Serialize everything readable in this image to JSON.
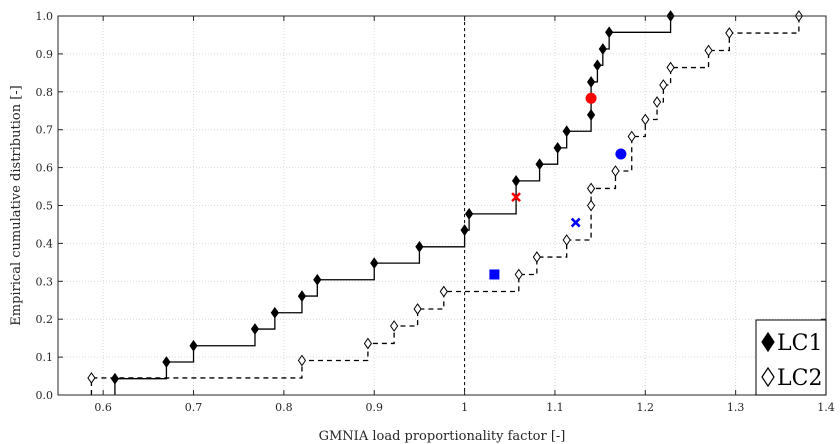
{
  "chart_data": {
    "type": "line",
    "xlabel": "GMNIA load proportionality factor [-]",
    "ylabel": "Empirical cumulative distribution [-]",
    "xlim": [
      0.55,
      1.4
    ],
    "ylim": [
      0.0,
      1.0
    ],
    "xticks": [
      0.6,
      0.7,
      0.8,
      0.9,
      1.0,
      1.1,
      1.2,
      1.3,
      1.4
    ],
    "yticks": [
      0.0,
      0.1,
      0.2,
      0.3,
      0.4,
      0.5,
      0.6,
      0.7,
      0.8,
      0.9,
      1.0
    ],
    "xtick_labels": [
      "0.6",
      "0.7",
      "0.8",
      "0.9",
      "1",
      "1.1",
      "1.2",
      "1.3",
      "1.4"
    ],
    "ytick_labels": [
      "0.0",
      "0.1",
      "0.2",
      "0.3",
      "0.4",
      "0.5",
      "0.6",
      "0.7",
      "0.8",
      "0.9",
      "1.0"
    ],
    "grid": true,
    "legend_position": "bottom-right",
    "reference_line": {
      "x": 1.0,
      "style": "dashed"
    },
    "series": [
      {
        "name": "LC1",
        "line_style": "solid",
        "marker": "filled-diamond",
        "color": "#000000",
        "points": [
          [
            0.613,
            0.043
          ],
          [
            0.67,
            0.087
          ],
          [
            0.7,
            0.13
          ],
          [
            0.768,
            0.174
          ],
          [
            0.79,
            0.217
          ],
          [
            0.82,
            0.261
          ],
          [
            0.837,
            0.304
          ],
          [
            0.9,
            0.348
          ],
          [
            0.95,
            0.391
          ],
          [
            1.0,
            0.435
          ],
          [
            1.005,
            0.478
          ],
          [
            1.057,
            0.565
          ],
          [
            1.083,
            0.609
          ],
          [
            1.103,
            0.652
          ],
          [
            1.113,
            0.696
          ],
          [
            1.14,
            0.739
          ],
          [
            1.14,
            0.826
          ],
          [
            1.147,
            0.87
          ],
          [
            1.153,
            0.913
          ],
          [
            1.16,
            0.957
          ],
          [
            1.228,
            1.0
          ]
        ]
      },
      {
        "name": "LC2",
        "line_style": "dashed",
        "marker": "open-diamond",
        "color": "#000000",
        "points": [
          [
            0.587,
            0.045
          ],
          [
            0.82,
            0.091
          ],
          [
            0.893,
            0.136
          ],
          [
            0.922,
            0.182
          ],
          [
            0.948,
            0.227
          ],
          [
            0.977,
            0.273
          ],
          [
            1.06,
            0.318
          ],
          [
            1.08,
            0.364
          ],
          [
            1.113,
            0.409
          ],
          [
            1.14,
            0.5
          ],
          [
            1.14,
            0.545
          ],
          [
            1.167,
            0.591
          ],
          [
            1.185,
            0.682
          ],
          [
            1.2,
            0.727
          ],
          [
            1.213,
            0.773
          ],
          [
            1.22,
            0.818
          ],
          [
            1.228,
            0.864
          ],
          [
            1.27,
            0.909
          ],
          [
            1.293,
            0.955
          ],
          [
            1.37,
            1.0
          ]
        ]
      }
    ],
    "highlights": [
      {
        "series": "LC1",
        "marker": "circle",
        "color": "#ff0000",
        "x": 1.14,
        "y": 0.783
      },
      {
        "series": "LC1",
        "marker": "cross",
        "color": "#ff0000",
        "x": 1.057,
        "y": 0.522
      },
      {
        "series": "LC2",
        "marker": "circle",
        "color": "#0000ff",
        "x": 1.173,
        "y": 0.636
      },
      {
        "series": "LC2",
        "marker": "cross",
        "color": "#0000ff",
        "x": 1.123,
        "y": 0.455
      },
      {
        "series": "LC2",
        "marker": "square",
        "color": "#0000ff",
        "x": 1.033,
        "y": 0.318
      }
    ]
  }
}
